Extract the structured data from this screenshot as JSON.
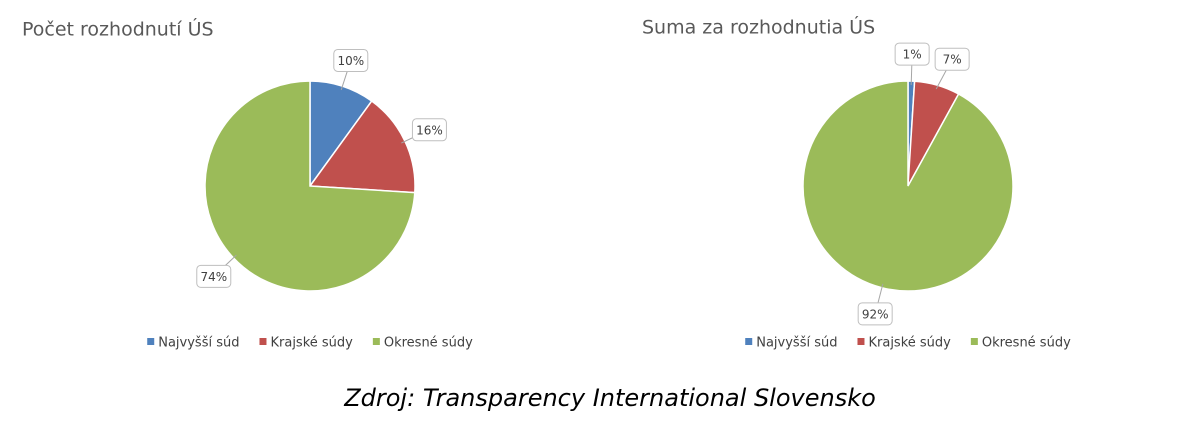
{
  "chart_data": [
    {
      "type": "pie",
      "title": "Počet rozhodnutí ÚS",
      "categories": [
        "Najvyšší súd",
        "Krajské súdy",
        "Okresné súdy"
      ],
      "values": [
        10,
        16,
        74
      ],
      "value_labels": [
        "10%",
        "16%",
        "74%"
      ],
      "colors": [
        "#4f81bd",
        "#c0504d",
        "#9bbb59"
      ]
    },
    {
      "type": "pie",
      "title": "Suma za rozhodnutia ÚS",
      "categories": [
        "Najvyšší súd",
        "Krajské súdy",
        "Okresné súdy"
      ],
      "values": [
        1,
        7,
        92
      ],
      "value_labels": [
        "1%",
        "7%",
        "92%"
      ],
      "colors": [
        "#4f81bd",
        "#c0504d",
        "#9bbb59"
      ]
    }
  ],
  "caption": "Zdroj: Transparency International Slovensko"
}
